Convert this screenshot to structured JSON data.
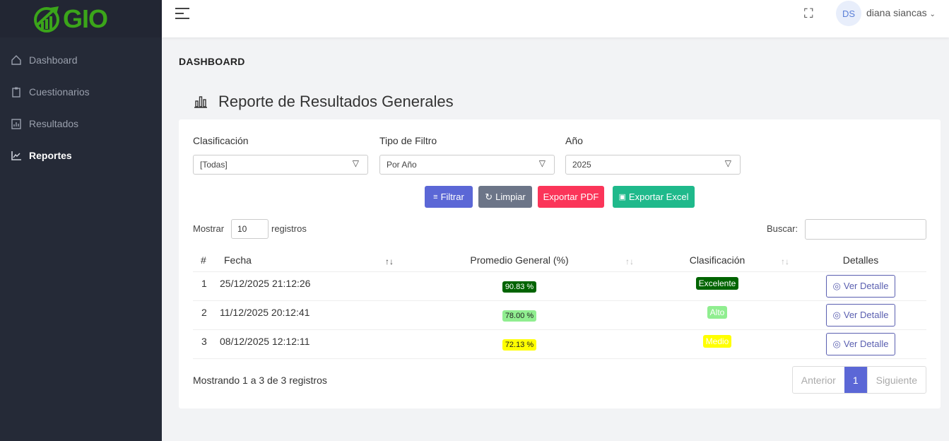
{
  "app": {
    "logo": "GIO",
    "brand_color": "#3ba51a"
  },
  "sidebar": {
    "items": [
      {
        "label": "Dashboard",
        "icon": "home-icon"
      },
      {
        "label": "Cuestionarios",
        "icon": "clipboard-icon"
      },
      {
        "label": "Resultados",
        "icon": "report-icon"
      },
      {
        "label": "Reportes",
        "icon": "chart-line-icon",
        "active": true
      }
    ]
  },
  "topbar": {
    "avatar_initials": "DS",
    "user_name": "diana siancas"
  },
  "page": {
    "title": "DASHBOARD",
    "report_title": "Reporte de Resultados Generales"
  },
  "filters": {
    "clasificacion": {
      "label": "Clasificación",
      "value": "[Todas]"
    },
    "tipo": {
      "label": "Tipo de Filtro",
      "value": "Por Año"
    },
    "anio": {
      "label": "Año",
      "value": "2025"
    }
  },
  "buttons": {
    "filtrar": "Filtrar",
    "limpiar": "Limpiar",
    "pdf": "Exportar PDF",
    "excel": "Exportar Excel"
  },
  "table_controls": {
    "show_prefix": "Mostrar",
    "show_value": "10",
    "show_suffix": "registros",
    "search_label": "Buscar:",
    "search_value": ""
  },
  "table": {
    "headers": [
      "#",
      "Fecha",
      "Promedio General (%)",
      "Clasificación",
      "Detalles"
    ],
    "rows": [
      {
        "n": "1",
        "fecha": "25/12/2025 21:12:26",
        "promedio": "90.83 %",
        "clasif": "Excelente",
        "detalle": "Ver Detalle",
        "color": "#006400",
        "text": "#fff"
      },
      {
        "n": "2",
        "fecha": "11/12/2025 20:12:41",
        "promedio": "78.00 %",
        "clasif": "Alto",
        "detalle": "Ver Detalle",
        "color": "#90ee90",
        "text": "#fff"
      },
      {
        "n": "3",
        "fecha": "08/12/2025 12:12:11",
        "promedio": "72.13 %",
        "clasif": "Medio",
        "detalle": "Ver Detalle",
        "color": "#ffff00",
        "text": "#fff"
      }
    ]
  },
  "footer": {
    "info": "Mostrando 1 a 3 de 3 registros",
    "prev": "Anterior",
    "page": "1",
    "next": "Siguiente"
  }
}
